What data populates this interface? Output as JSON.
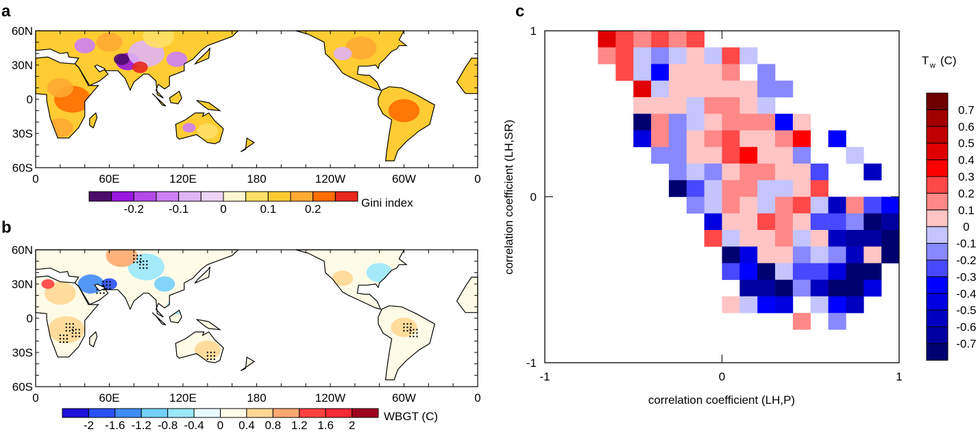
{
  "panel_labels": {
    "a": "a",
    "b": "b",
    "c": "c"
  },
  "chart_data": [
    {
      "type": "map",
      "panel": "a",
      "lon_tick_labels": [
        "0",
        "60E",
        "120E",
        "180",
        "120W",
        "60W",
        "0"
      ],
      "lat_tick_labels": [
        "60N",
        "30N",
        "0",
        "30S",
        "60S"
      ],
      "lon_range": [
        0,
        360
      ],
      "lat_range": [
        -60,
        60
      ],
      "colorbar": {
        "label": "Gini index",
        "tick_labels": [
          "-0.2",
          "-0.1",
          "0",
          "0.1",
          "0.2"
        ],
        "boundaries": [
          -0.25,
          -0.2,
          -0.15,
          -0.1,
          -0.05,
          0,
          0.05,
          0.1,
          0.15,
          0.2,
          0.25
        ],
        "colors": [
          "#4b0c6b",
          "#9a16e0",
          "#b44ae9",
          "#cd80f3",
          "#e0b4f5",
          "#edd4f9",
          "#fff6d0",
          "#ffe066",
          "#ffcc33",
          "#ffaa33",
          "#ff6e00",
          "#e8281e"
        ]
      },
      "missing_color": "#c8c8c8"
    },
    {
      "type": "map",
      "panel": "b",
      "lon_tick_labels": [
        "0",
        "60E",
        "120E",
        "180",
        "120W",
        "60W",
        "0"
      ],
      "lat_tick_labels": [
        "60N",
        "30N",
        "0",
        "30S",
        "60S"
      ],
      "lon_range": [
        0,
        360
      ],
      "lat_range": [
        -60,
        60
      ],
      "colorbar": {
        "label": "WBGT (C)",
        "tick_labels": [
          "-2",
          "-1.6",
          "-1.2",
          "-0.8",
          "-0.4",
          "0",
          "0.4",
          "0.8",
          "1.2",
          "1.6",
          "2"
        ],
        "boundaries": [
          -2,
          -1.6,
          -1.2,
          -0.8,
          -0.4,
          0,
          0.4,
          0.8,
          1.2,
          1.6,
          2
        ],
        "colors": [
          "#2010d8",
          "#2a50f5",
          "#3f8cf5",
          "#74d0fa",
          "#9ae8fb",
          "#e6fbfd",
          "#fffbe6",
          "#ffd894",
          "#ffa870",
          "#ff4040",
          "#f52838",
          "#a00020"
        ]
      },
      "stippling": true
    },
    {
      "type": "heatmap",
      "panel": "c",
      "xlabel": "correlation coefficient (LH,P)",
      "ylabel": "correlation coefficient (LH,SR)",
      "xlim": [
        -1,
        1
      ],
      "ylim": [
        -1,
        1
      ],
      "x_tick_labels": [
        "-1",
        "0",
        "1"
      ],
      "y_tick_labels": [
        "1",
        "0",
        "-1"
      ],
      "x_bin_width": 0.1,
      "y_bin_width": 0.1,
      "x_centers": [
        -0.95,
        -0.85,
        -0.75,
        -0.65,
        -0.55,
        -0.45,
        -0.35,
        -0.25,
        -0.15,
        -0.05,
        0.05,
        0.15,
        0.25,
        0.35,
        0.45,
        0.55,
        0.65,
        0.75,
        0.85,
        0.95
      ],
      "y_centers_top_to_bottom": [
        0.95,
        0.85,
        0.75,
        0.65,
        0.55,
        0.45,
        0.35,
        0.25,
        0.15,
        0.05,
        -0.05,
        -0.15,
        -0.25,
        -0.35,
        -0.45,
        -0.55,
        -0.65,
        -0.75,
        -0.85,
        -0.95
      ],
      "z": [
        [
          null,
          null,
          null,
          0.45,
          0.25,
          0.15,
          0.25,
          0.15,
          0.25,
          null,
          null,
          null,
          null,
          null,
          null,
          null,
          null,
          null,
          null,
          null
        ],
        [
          null,
          null,
          null,
          0.15,
          0.25,
          -0.05,
          -0.15,
          -0.05,
          0.05,
          -0.05,
          0.25,
          -0.05,
          null,
          null,
          null,
          null,
          null,
          null,
          null,
          null
        ],
        [
          null,
          null,
          null,
          null,
          0.25,
          -0.05,
          -0.35,
          0.05,
          0.05,
          0.05,
          0.15,
          null,
          -0.15,
          null,
          null,
          null,
          null,
          null,
          null,
          null
        ],
        [
          null,
          null,
          null,
          null,
          null,
          0.45,
          -0.05,
          0.05,
          0.05,
          0.05,
          0.05,
          0.05,
          -0.15,
          -0.15,
          null,
          null,
          null,
          null,
          null,
          null
        ],
        [
          null,
          null,
          null,
          null,
          null,
          0.05,
          0.05,
          0.05,
          -0.05,
          0.15,
          0.15,
          0.05,
          -0.05,
          null,
          null,
          null,
          null,
          null,
          null,
          null
        ],
        [
          null,
          null,
          null,
          null,
          null,
          -0.75,
          0.15,
          -0.15,
          -0.05,
          0.05,
          0.15,
          0.15,
          0.15,
          -0.35,
          0.05,
          null,
          null,
          null,
          null,
          null
        ],
        [
          null,
          null,
          null,
          null,
          null,
          -0.45,
          0.15,
          -0.15,
          0.05,
          0.15,
          0.25,
          0.05,
          0.05,
          0.15,
          0.35,
          null,
          -0.35,
          null,
          null,
          null
        ],
        [
          null,
          null,
          null,
          null,
          null,
          null,
          -0.15,
          -0.15,
          0.05,
          0.05,
          0.25,
          0.35,
          0.05,
          0.05,
          -0.15,
          null,
          null,
          -0.05,
          null,
          null
        ],
        [
          null,
          null,
          null,
          null,
          null,
          null,
          null,
          -0.15,
          -0.05,
          -0.15,
          0.05,
          0.15,
          0.15,
          0.05,
          0.05,
          -0.25,
          null,
          null,
          -0.55,
          null
        ],
        [
          null,
          null,
          null,
          null,
          null,
          null,
          null,
          -0.75,
          -0.25,
          -0.05,
          0.15,
          0.15,
          -0.05,
          -0.05,
          0.05,
          0.25,
          null,
          null,
          null,
          null
        ],
        [
          null,
          null,
          null,
          null,
          null,
          null,
          null,
          null,
          -0.15,
          -0.05,
          0.15,
          0.05,
          -0.05,
          0.15,
          0.25,
          -0.05,
          -0.55,
          0.15,
          -0.25,
          -0.35
        ],
        [
          null,
          null,
          null,
          null,
          null,
          null,
          null,
          null,
          null,
          -0.45,
          0.05,
          0.05,
          0.25,
          0.15,
          0.05,
          -0.25,
          -0.25,
          -0.15,
          -0.75,
          -0.65
        ],
        [
          null,
          null,
          null,
          null,
          null,
          null,
          null,
          null,
          null,
          0.25,
          -0.05,
          0.05,
          0.05,
          0.15,
          -0.05,
          0.05,
          -0.55,
          -0.65,
          -0.65,
          -0.75
        ],
        [
          null,
          null,
          null,
          null,
          null,
          null,
          null,
          null,
          null,
          null,
          -0.75,
          -0.45,
          0.05,
          0.05,
          -0.15,
          -0.05,
          -0.15,
          -0.55,
          0.05,
          -0.75
        ],
        [
          null,
          null,
          null,
          null,
          null,
          null,
          null,
          null,
          null,
          null,
          -0.25,
          -0.35,
          -0.75,
          -0.05,
          -0.25,
          -0.25,
          -0.45,
          -0.75,
          -0.75,
          null
        ],
        [
          null,
          null,
          null,
          null,
          null,
          null,
          null,
          null,
          null,
          null,
          null,
          -0.65,
          -0.65,
          -0.75,
          -0.15,
          -0.55,
          -0.75,
          -0.75,
          -0.45,
          null
        ],
        [
          null,
          null,
          null,
          null,
          null,
          null,
          null,
          null,
          null,
          null,
          0.05,
          -0.05,
          -0.35,
          -0.45,
          null,
          -0.05,
          -0.35,
          -0.55,
          null,
          null
        ],
        [
          null,
          null,
          null,
          null,
          null,
          null,
          null,
          null,
          null,
          null,
          null,
          null,
          null,
          null,
          0.15,
          null,
          -0.15,
          null,
          null,
          null
        ],
        [
          null,
          null,
          null,
          null,
          null,
          null,
          null,
          null,
          null,
          null,
          null,
          null,
          null,
          null,
          null,
          null,
          null,
          null,
          null,
          null
        ],
        [
          null,
          null,
          null,
          null,
          null,
          null,
          null,
          null,
          null,
          null,
          null,
          null,
          null,
          null,
          null,
          null,
          null,
          null,
          null,
          null
        ]
      ],
      "colorbar": {
        "title_main": "T",
        "title_sub": "w",
        "title_unit": "(C)",
        "tick_labels": [
          "0.7",
          "0.6",
          "0.5",
          "0.4",
          "0.3",
          "0.2",
          "0.1",
          "0",
          "-0.1",
          "-0.2",
          "-0.3",
          "-0.4",
          "-0.5",
          "-0.6",
          "-0.7"
        ],
        "boundaries_top_to_bottom": [
          0.7,
          0.6,
          0.5,
          0.4,
          0.3,
          0.2,
          0.1,
          0,
          -0.1,
          -0.2,
          -0.3,
          -0.4,
          -0.5,
          -0.6,
          -0.7
        ],
        "colors_top_to_bottom": [
          "#6e0000",
          "#a00000",
          "#c00000",
          "#e00000",
          "#ff0000",
          "#ff4848",
          "#ff8888",
          "#ffc4c4",
          "#c4c4ff",
          "#8888ff",
          "#4848ff",
          "#0000ff",
          "#0000e0",
          "#0000c0",
          "#0000a0",
          "#000070"
        ]
      }
    }
  ]
}
